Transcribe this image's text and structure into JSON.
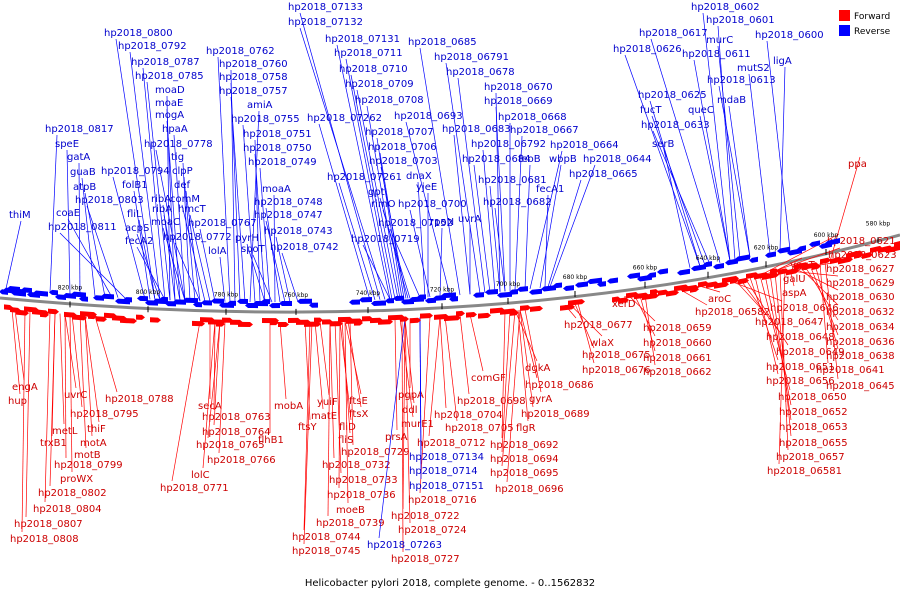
{
  "caption": "Helicobacter pylori 2018, complete genome. - 0..1562832",
  "legend": [
    {
      "label": "Forward",
      "color": "#ff0000"
    },
    {
      "label": "Reverse",
      "color": "#0000ff"
    }
  ],
  "colors": {
    "forward_text": "#cc0000",
    "reverse_text": "#0000cc",
    "forward": "#ff0000",
    "reverse": "#0000ff"
  },
  "ticks": [
    "820 kbp",
    "800 kbp",
    "780 kbp",
    "760 kbp",
    "740 kbp",
    "720 kbp",
    "700 kbp",
    "680 kbp",
    "660 kbp",
    "640 kbp",
    "620 kbp",
    "600 kbp",
    "580 kbp"
  ],
  "reverse_labels": [
    {
      "text": "thiM"
    },
    {
      "text": "hp2018_0817"
    },
    {
      "text": "speE"
    },
    {
      "text": "gatA"
    },
    {
      "text": "guaB"
    },
    {
      "text": "atpB"
    },
    {
      "text": "hp2018_0803"
    },
    {
      "text": "coaE"
    },
    {
      "text": "hp2018_0811"
    },
    {
      "text": "hp2018_0800"
    },
    {
      "text": "hp2018_0792"
    },
    {
      "text": "hp2018_0787"
    },
    {
      "text": "hp2018_0785"
    },
    {
      "text": "moaD"
    },
    {
      "text": "moaE"
    },
    {
      "text": "mogA"
    },
    {
      "text": "hpaA"
    },
    {
      "text": "hp2018_0778"
    },
    {
      "text": "tig"
    },
    {
      "text": "hp2018_0794"
    },
    {
      "text": "clpP"
    },
    {
      "text": "folB1"
    },
    {
      "text": "def"
    },
    {
      "text": "ribA"
    },
    {
      "text": "comM"
    },
    {
      "text": "fliL"
    },
    {
      "text": "ribA"
    },
    {
      "text": "hmcT"
    },
    {
      "text": "acpS"
    },
    {
      "text": "moaC"
    },
    {
      "text": "hp2018_0767"
    },
    {
      "text": "fecA2"
    },
    {
      "text": "hp2018_0772"
    },
    {
      "text": "lolA"
    },
    {
      "text": "hp2018_0762"
    },
    {
      "text": "hp2018_0760"
    },
    {
      "text": "hp2018_0758"
    },
    {
      "text": "hp2018_0757"
    },
    {
      "text": "amiA"
    },
    {
      "text": "hp2018_0755"
    },
    {
      "text": "hp2018_0751"
    },
    {
      "text": "hp2018_0750"
    },
    {
      "text": "hp2018_0749"
    },
    {
      "text": "moaA"
    },
    {
      "text": "hp2018_0748"
    },
    {
      "text": "hp2018_0747"
    },
    {
      "text": "hp2018_0743"
    },
    {
      "text": "pyrH"
    },
    {
      "text": "spoT"
    },
    {
      "text": "hp2018_0742"
    },
    {
      "text": "hp2018_07133"
    },
    {
      "text": "hp2018_07132"
    },
    {
      "text": "hp2018_07131"
    },
    {
      "text": "hp2018_0711"
    },
    {
      "text": "hp2018_0710"
    },
    {
      "text": "hp2018_0709"
    },
    {
      "text": "hp2018_0708"
    },
    {
      "text": "hp2018_07262"
    },
    {
      "text": "hp2018_0707"
    },
    {
      "text": "hp2018_0706"
    },
    {
      "text": "hp2018_0703"
    },
    {
      "text": "hp2018_07261"
    },
    {
      "text": "gpt"
    },
    {
      "text": "rimO"
    },
    {
      "text": "hp2018_07152"
    },
    {
      "text": "hp2018_0719"
    },
    {
      "text": "dnaX"
    },
    {
      "text": "yjeE"
    },
    {
      "text": "hp2018_0700"
    },
    {
      "text": "rpoN"
    },
    {
      "text": "hp2018_0685"
    },
    {
      "text": "hp2018_06791"
    },
    {
      "text": "hp2018_0678"
    },
    {
      "text": "hp2018_0693"
    },
    {
      "text": "hp2018_0670"
    },
    {
      "text": "hp2018_0669"
    },
    {
      "text": "hp2018_0668"
    },
    {
      "text": "hp2018_0683"
    },
    {
      "text": "hp2018_0667"
    },
    {
      "text": "hp2018_06792"
    },
    {
      "text": "hp2018_0664"
    },
    {
      "text": "hp2018_0684"
    },
    {
      "text": "feoB"
    },
    {
      "text": "wbpB"
    },
    {
      "text": "hp2018_0644"
    },
    {
      "text": "hp2018_0681"
    },
    {
      "text": "hp2018_0665"
    },
    {
      "text": "fecA1"
    },
    {
      "text": "uvrA"
    },
    {
      "text": "hp2018_0682"
    },
    {
      "text": "hp2018_0602"
    },
    {
      "text": "hp2018_0601"
    },
    {
      "text": "hp2018_0617"
    },
    {
      "text": "murC"
    },
    {
      "text": "hp2018_0600"
    },
    {
      "text": "hp2018_0626"
    },
    {
      "text": "hp2018_0611"
    },
    {
      "text": "ligA"
    },
    {
      "text": "mutS2"
    },
    {
      "text": "hp2018_0613"
    },
    {
      "text": "hp2018_0625"
    },
    {
      "text": "mdaB"
    },
    {
      "text": "fucT"
    },
    {
      "text": "queC"
    },
    {
      "text": "hp2018_0633"
    },
    {
      "text": "serB"
    }
  ],
  "forward_labels": [
    {
      "text": "engA"
    },
    {
      "text": "hup"
    },
    {
      "text": "uvrC"
    },
    {
      "text": "metL"
    },
    {
      "text": "thiF"
    },
    {
      "text": "hp2018_0795"
    },
    {
      "text": "hp2018_0788"
    },
    {
      "text": "trxB1"
    },
    {
      "text": "motA"
    },
    {
      "text": "motB"
    },
    {
      "text": "hp2018_0799"
    },
    {
      "text": "proWX"
    },
    {
      "text": "hp2018_0802"
    },
    {
      "text": "hp2018_0804"
    },
    {
      "text": "hp2018_0807"
    },
    {
      "text": "hp2018_0808"
    },
    {
      "text": "secA"
    },
    {
      "text": "hp2018_0763"
    },
    {
      "text": "hp2018_0764"
    },
    {
      "text": "hp2018_0765"
    },
    {
      "text": "hp2018_0766"
    },
    {
      "text": "lolC"
    },
    {
      "text": "hp2018_0771"
    },
    {
      "text": "mobA"
    },
    {
      "text": "flhB1"
    },
    {
      "text": "ftsY"
    },
    {
      "text": "yuiF"
    },
    {
      "text": "matE"
    },
    {
      "text": "ftsE"
    },
    {
      "text": "ftsX"
    },
    {
      "text": "fliD"
    },
    {
      "text": "fliS"
    },
    {
      "text": "hp2018_0729"
    },
    {
      "text": "hp2018_0732"
    },
    {
      "text": "hp2018_0733"
    },
    {
      "text": "hp2018_0736"
    },
    {
      "text": "moeB"
    },
    {
      "text": "hp2018_0739"
    },
    {
      "text": "hp2018_0744"
    },
    {
      "text": "hp2018_0745"
    },
    {
      "text": "pgpA"
    },
    {
      "text": "ddl"
    },
    {
      "text": "murE1"
    },
    {
      "text": "prsA"
    },
    {
      "text": "hp2018_0722"
    },
    {
      "text": "hp2018_0724"
    },
    {
      "text": "hp2018_0727"
    },
    {
      "text": "hp2018_0716"
    },
    {
      "text": "comGF"
    },
    {
      "text": "hp2018_0698"
    },
    {
      "text": "hp2018_0704"
    },
    {
      "text": "hp2018_0705"
    },
    {
      "text": "hp2018_0712"
    },
    {
      "text": "dgkA"
    },
    {
      "text": "hp2018_0686"
    },
    {
      "text": "gyrA"
    },
    {
      "text": "hp2018_0689"
    },
    {
      "text": "flgR"
    },
    {
      "text": "hp2018_0692"
    },
    {
      "text": "hp2018_0694"
    },
    {
      "text": "hp2018_0695"
    },
    {
      "text": "hp2018_0696"
    },
    {
      "text": "hp2018_0677"
    },
    {
      "text": "wlaX"
    },
    {
      "text": "hp2018_0675"
    },
    {
      "text": "hp2018_0676"
    },
    {
      "text": "xerD"
    },
    {
      "text": "hp2018_0659"
    },
    {
      "text": "hp2018_0660"
    },
    {
      "text": "hp2018_0661"
    },
    {
      "text": "hp2018_0662"
    },
    {
      "text": "hp2018_06582"
    },
    {
      "text": "aroC"
    },
    {
      "text": "hp2018_0646"
    },
    {
      "text": "hp2018_0647"
    },
    {
      "text": "hp2018_0648"
    },
    {
      "text": "hp2018_0649"
    },
    {
      "text": "hp2018_0651"
    },
    {
      "text": "hp2018_0656"
    },
    {
      "text": "hp2018_0650"
    },
    {
      "text": "hp2018_0652"
    },
    {
      "text": "hp2018_0653"
    },
    {
      "text": "hp2018_0655"
    },
    {
      "text": "hp2018_0657"
    },
    {
      "text": "hp2018_06581"
    },
    {
      "text": "ppa"
    },
    {
      "text": "hp2018_0621"
    },
    {
      "text": "hp2018_0623"
    },
    {
      "text": "yggT"
    },
    {
      "text": "hp2018_0627"
    },
    {
      "text": "galU"
    },
    {
      "text": "hp2018_0629"
    },
    {
      "text": "aspA"
    },
    {
      "text": "hp2018_0630"
    },
    {
      "text": "hp2018_0632"
    },
    {
      "text": "hp2018_0634"
    },
    {
      "text": "hp2018_0636"
    },
    {
      "text": "hp2018_0638"
    },
    {
      "text": "hp2018_0641"
    },
    {
      "text": "hp2018_0645"
    }
  ],
  "extra_reverse_labels": [
    {
      "text": "hp2018_07134"
    },
    {
      "text": "hp2018_0714"
    },
    {
      "text": "hp2018_07151"
    },
    {
      "text": "hp2018_07263"
    }
  ]
}
